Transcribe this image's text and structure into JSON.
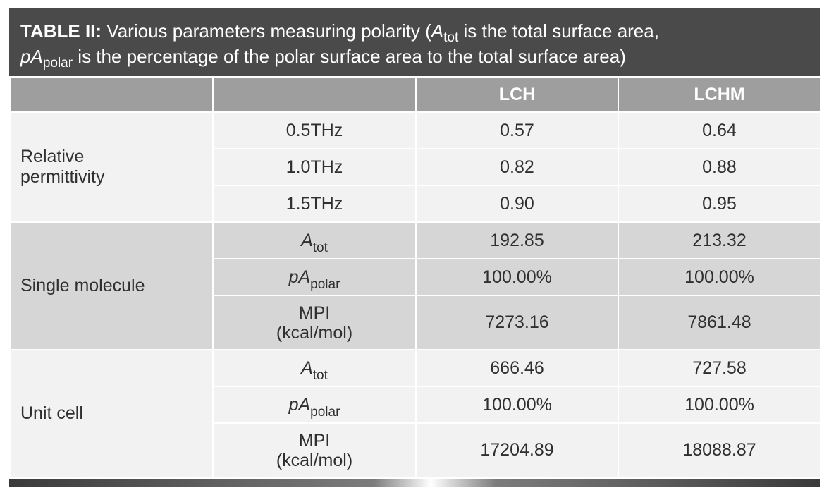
{
  "title": {
    "label": "TABLE II:",
    "text_a": "Various parameters measuring polarity (",
    "atot_main": "A",
    "atot_sub": "tot",
    "text_b": " is the total surface area,",
    "pa_main": "pA",
    "pa_sub": "polar",
    "text_c": " is the percentage of the polar surface area to the total surface area)"
  },
  "header": {
    "col0": "",
    "col1": "",
    "col2": "LCH",
    "col3": "LCHM"
  },
  "groups": {
    "relative_permittivity": {
      "label": "Relative permittivity",
      "rows": [
        {
          "param": "0.5THz",
          "lch": "0.57",
          "lchm": "0.64"
        },
        {
          "param": "1.0THz",
          "lch": "0.82",
          "lchm": "0.88"
        },
        {
          "param": "1.5THz",
          "lch": "0.90",
          "lchm": "0.95"
        }
      ]
    },
    "single_molecule": {
      "label": "Single molecule",
      "atot": {
        "main": "A",
        "sub": "tot",
        "lch": "192.85",
        "lchm": "213.32"
      },
      "papolar": {
        "main": "pA",
        "sub": "polar",
        "lch": "100.00%",
        "lchm": "100.00%"
      },
      "mpi": {
        "line1": "MPI",
        "line2": "(kcal/mol)",
        "lch": "7273.16",
        "lchm": "7861.48"
      }
    },
    "unit_cell": {
      "label": "Unit cell",
      "atot": {
        "main": "A",
        "sub": "tot",
        "lch": "666.46",
        "lchm": "727.58"
      },
      "papolar": {
        "main": "pA",
        "sub": "polar",
        "lch": "100.00%",
        "lchm": "100.00%"
      },
      "mpi": {
        "line1": "MPI",
        "line2": "(kcal/mol)",
        "lch": "17204.89",
        "lchm": "18088.87"
      }
    }
  }
}
